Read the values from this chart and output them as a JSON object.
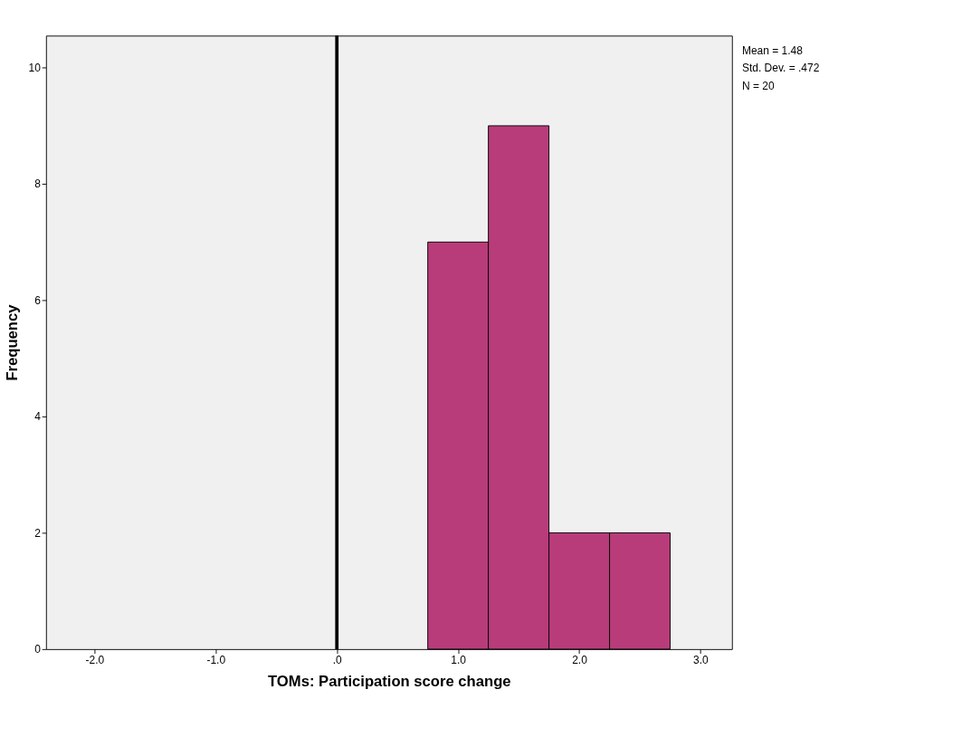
{
  "chart_data": {
    "type": "histogram",
    "xlabel": "TOMs: Participation score change",
    "ylabel": "Frequency",
    "bins": [
      0.75,
      1.25,
      1.75,
      2.25,
      2.75
    ],
    "values": [
      7,
      9,
      2,
      2
    ],
    "color": "#b83c7a",
    "xlim": [
      -2.4,
      3.26
    ],
    "ylim": [
      0,
      10.55
    ],
    "xticks": [
      {
        "value": -2,
        "label": "-2.0"
      },
      {
        "value": -1,
        "label": "-1.0"
      },
      {
        "value": 0,
        "label": ".0"
      },
      {
        "value": 1,
        "label": "1.0"
      },
      {
        "value": 2,
        "label": "2.0"
      },
      {
        "value": 3,
        "label": "3.0"
      }
    ],
    "yticks": [
      0,
      2,
      4,
      6,
      8,
      10
    ],
    "ref_lines": [
      {
        "axis": "x",
        "value": 0,
        "color": "#000000"
      }
    ],
    "annotations": [
      "Mean = 1.48",
      "Std. Dev. = .472",
      "N = 20"
    ],
    "grid": false
  }
}
